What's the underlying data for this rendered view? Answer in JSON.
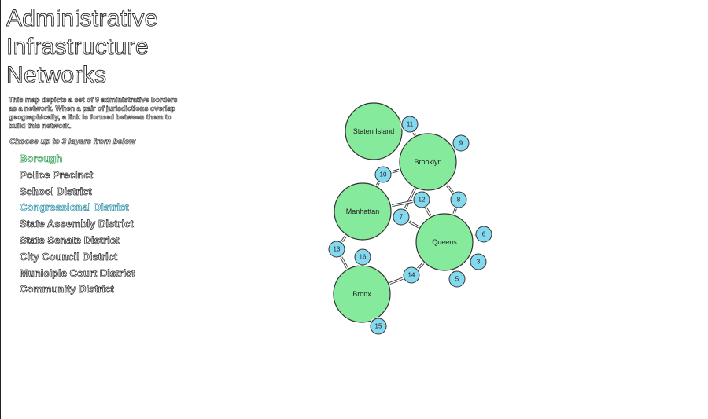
{
  "title_lines": [
    "Administrative",
    "Infrastructure",
    "Networks"
  ],
  "description": "This map depicts a set of 9 administrative borders as a network. When a pair of jurisdictions overlap geographically, a link is formed between them to build this network.",
  "prompt": "Choose up to 3 layers from below",
  "layers": [
    {
      "label": "Borough",
      "selected": "green"
    },
    {
      "label": "Police Precinct",
      "selected": null
    },
    {
      "label": "School District",
      "selected": null
    },
    {
      "label": "Congressional District",
      "selected": "blue"
    },
    {
      "label": "State Assembly District",
      "selected": null
    },
    {
      "label": "State Senate District",
      "selected": null
    },
    {
      "label": "City Council District",
      "selected": null
    },
    {
      "label": "Municiple Court District",
      "selected": null
    },
    {
      "label": "Community District",
      "selected": null
    }
  ],
  "colors": {
    "borough": "#86ea9c",
    "congressional": "#85d9ef",
    "stroke": "#333333"
  },
  "network": {
    "boroughs": [
      "Staten Island",
      "Brooklyn",
      "Manhattan",
      "Queens",
      "Bronx"
    ],
    "districts": [
      "3",
      "5",
      "6",
      "7",
      "8",
      "9",
      "10",
      "11",
      "12",
      "13",
      "14",
      "15",
      "16"
    ],
    "links": [
      [
        "Staten Island",
        "11"
      ],
      [
        "11",
        "Brooklyn"
      ],
      [
        "Brooklyn",
        "9"
      ],
      [
        "Brooklyn",
        "10"
      ],
      [
        "Brooklyn",
        "12"
      ],
      [
        "Brooklyn",
        "8"
      ],
      [
        "Brooklyn",
        "7"
      ],
      [
        "10",
        "Manhattan"
      ],
      [
        "Manhattan",
        "12"
      ],
      [
        "Manhattan",
        "7"
      ],
      [
        "Manhattan",
        "13"
      ],
      [
        "12",
        "Queens"
      ],
      [
        "7",
        "Queens"
      ],
      [
        "8",
        "Queens"
      ],
      [
        "Queens",
        "6"
      ],
      [
        "Queens",
        "3"
      ],
      [
        "Queens",
        "5"
      ],
      [
        "Queens",
        "14"
      ],
      [
        "14",
        "Bronx"
      ],
      [
        "13",
        "Bronx"
      ],
      [
        "16",
        "Bronx"
      ],
      [
        "Bronx",
        "15"
      ]
    ]
  }
}
